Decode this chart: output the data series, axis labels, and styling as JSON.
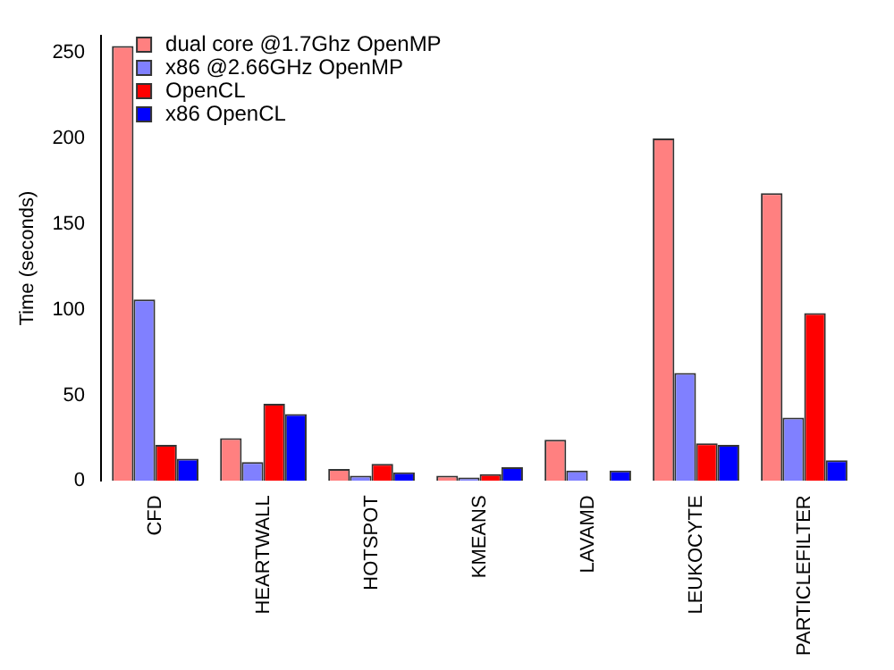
{
  "chart_data": {
    "type": "bar",
    "ylabel": "Time (seconds)",
    "categories": [
      "CFD",
      "HEARTWALL",
      "HOTSPOT",
      "KMEANS",
      "LAVAMD",
      "LEUKOCYTE",
      "PARTICLEFILTER"
    ],
    "series": [
      {
        "name": "dual core @1.7Ghz OpenMP",
        "color": "#ff8080",
        "values": [
          254,
          25,
          7,
          3,
          24,
          200,
          168
        ]
      },
      {
        "name": "x86 @2.66GHz OpenMP",
        "color": "#8080ff",
        "values": [
          106,
          11,
          3,
          2,
          6,
          63,
          37
        ]
      },
      {
        "name": "OpenCL",
        "color": "#ff0000",
        "values": [
          21,
          45,
          10,
          4,
          null,
          22,
          98
        ]
      },
      {
        "name": "x86 OpenCL",
        "color": "#0000ff",
        "values": [
          13,
          39,
          5,
          8,
          6,
          21,
          12
        ]
      }
    ],
    "ylim": [
      0,
      260
    ],
    "yticks": [
      0,
      50,
      100,
      150,
      200,
      250
    ],
    "grid": false,
    "legend": "top left"
  }
}
